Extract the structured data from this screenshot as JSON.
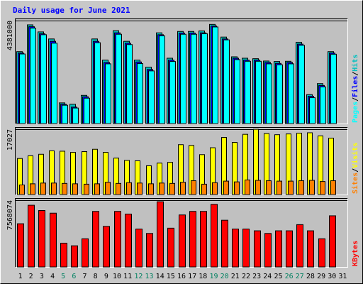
{
  "chart_data": {
    "type": "bar",
    "title": "Daily usage for June 2021",
    "colors": {
      "page_bg": "#c8c8c8",
      "plot_bg": "#c0c0c0",
      "title": "#0000ff",
      "hits": "#00c0c0",
      "files": "#0000ff",
      "pages": "#00ffff",
      "visits": "#ffff00",
      "sites": "#ff8000",
      "kbytes": "#ff0000",
      "weekend_day": "#008060",
      "weekday": "#000000"
    },
    "days": [
      "1",
      "2",
      "3",
      "4",
      "5",
      "6",
      "7",
      "8",
      "9",
      "10",
      "11",
      "12",
      "13",
      "14",
      "15",
      "16",
      "17",
      "18",
      "19",
      "20",
      "21",
      "22",
      "23",
      "24",
      "25",
      "26",
      "27",
      "28",
      "29",
      "30",
      "31"
    ],
    "weekend_days": [
      "5",
      "6",
      "12",
      "13",
      "19",
      "20",
      "26",
      "27"
    ],
    "panels": [
      {
        "id": "requests",
        "ymax": 4381000,
        "tick_label": "4381000",
        "legend": [
          {
            "label": "Hits",
            "color": "#00c0c0"
          },
          {
            "label": "/",
            "color": "#000000"
          },
          {
            "label": "Files",
            "color": "#0000ff"
          },
          {
            "label": "/",
            "color": "#000000"
          },
          {
            "label": "Pages",
            "color": "#00ffff"
          }
        ],
        "series": [
          {
            "name": "Hits",
            "color": "#00c0c0",
            "values": [
              3060000,
              4200000,
              3900000,
              3600000,
              880000,
              820000,
              1200000,
              3600000,
              2700000,
              3950000,
              3500000,
              2700000,
              2400000,
              3860000,
              2780000,
              3920000,
              3920000,
              3940000,
              4220000,
              3680000,
              2840000,
              2780000,
              2760000,
              2660000,
              2640000,
              2650000,
              3460000,
              1230000,
              1700000,
              3060000,
              null
            ]
          },
          {
            "name": "Files",
            "color": "#0000ff",
            "values": [
              3000000,
              4120000,
              3820000,
              3500000,
              820000,
              700000,
              1140000,
              3500000,
              2600000,
              3860000,
              3420000,
              2620000,
              2300000,
              3780000,
              2700000,
              3850000,
              3850000,
              3860000,
              4150000,
              3600000,
              2780000,
              2700000,
              2700000,
              2600000,
              2560000,
              2600000,
              3380000,
              1160000,
              1620000,
              3000000,
              null
            ]
          },
          {
            "name": "Pages",
            "color": "#00ffff",
            "values": [
              2960000,
              4060000,
              3780000,
              3420000,
              780000,
              660000,
              1080000,
              3440000,
              2540000,
              3800000,
              3360000,
              2550000,
              2240000,
              3730000,
              2640000,
              3800000,
              3800000,
              3820000,
              4110000,
              3560000,
              2720000,
              2650000,
              2650000,
              2540000,
              2500000,
              2540000,
              3330000,
              1100000,
              1560000,
              2950000,
              null
            ]
          }
        ]
      },
      {
        "id": "visits",
        "ymax": 17027,
        "tick_label": "17027",
        "legend": [
          {
            "label": "Visits",
            "color": "#ffff00"
          },
          {
            "label": "/",
            "color": "#000000"
          },
          {
            "label": "Sites",
            "color": "#ff8000"
          }
        ],
        "series": [
          {
            "name": "Visits",
            "color": "#ffff00",
            "values": [
              9400,
              10100,
              10500,
              11400,
              11300,
              11000,
              11200,
              11800,
              11000,
              9500,
              8900,
              8800,
              7500,
              8200,
              8400,
              13000,
              12800,
              10400,
              12200,
              14900,
              13600,
              15700,
              17000,
              15900,
              15600,
              15800,
              16000,
              16100,
              15300,
              14700,
              null
            ]
          },
          {
            "name": "Sites",
            "color": "#ff8000",
            "values": [
              2500,
              2800,
              3000,
              3000,
              2900,
              2800,
              2700,
              2800,
              3200,
              2900,
              3100,
              3000,
              2800,
              3000,
              2900,
              3200,
              3600,
              2700,
              3100,
              3500,
              3300,
              3800,
              3700,
              3600,
              3500,
              3500,
              3600,
              3700,
              3400,
              3600,
              null
            ]
          }
        ]
      },
      {
        "id": "kbytes",
        "ymax": 7568074,
        "tick_label": "7568074",
        "legend": [
          {
            "label": "KBytes",
            "color": "#ff0000"
          }
        ],
        "series": [
          {
            "name": "KBytes",
            "color": "#ff0000",
            "values": [
              4900000,
              7000000,
              6400000,
              6100000,
              2700000,
              2400000,
              3200000,
              6300000,
              4600000,
              6300000,
              6000000,
              4300000,
              3800000,
              7400000,
              4400000,
              5900000,
              6300000,
              6300000,
              7100000,
              5300000,
              4300000,
              4300000,
              4100000,
              3800000,
              4100000,
              4100000,
              4800000,
              4100000,
              3200000,
              5800000,
              null
            ]
          }
        ]
      }
    ]
  }
}
